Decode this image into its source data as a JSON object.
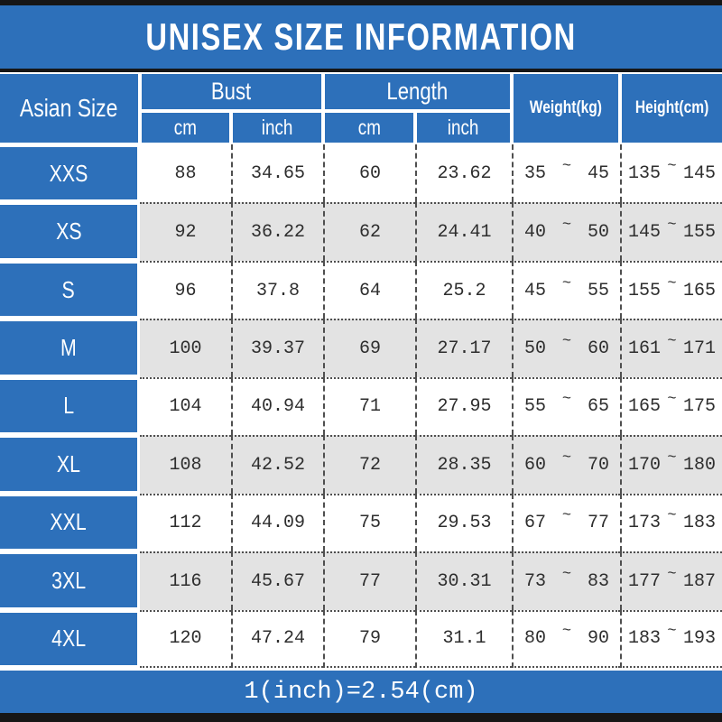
{
  "banner": {
    "title": "UNISEX SIZE INFORMATION"
  },
  "colors": {
    "blue": "#2d70ba",
    "alt_row": "#e3e3e3",
    "separator": "#4f4f4f",
    "bar": "#161616",
    "header_text": "#ffffff",
    "data_text": "#2e2e2e"
  },
  "chart_data": {
    "type": "table",
    "title": "UNISEX SIZE INFORMATION",
    "header": {
      "asian_size": "Asian Size",
      "bust": "Bust",
      "length": "Length",
      "weight": "Weight(kg)",
      "height": "Height(cm)",
      "cm": "cm",
      "inch": "inch",
      "range_separator": "~"
    },
    "columns": [
      "Asian Size",
      "Bust cm",
      "Bust inch",
      "Length cm",
      "Length inch",
      "Weight(kg)",
      "Height(cm)"
    ],
    "rows": [
      {
        "size": "XXS",
        "bust_cm": "88",
        "bust_inch": "34.65",
        "length_cm": "60",
        "length_inch": "23.62",
        "weight_min": "35",
        "weight_max": "45",
        "height_min": "135",
        "height_max": "145"
      },
      {
        "size": "XS",
        "bust_cm": "92",
        "bust_inch": "36.22",
        "length_cm": "62",
        "length_inch": "24.41",
        "weight_min": "40",
        "weight_max": "50",
        "height_min": "145",
        "height_max": "155"
      },
      {
        "size": "S",
        "bust_cm": "96",
        "bust_inch": "37.8",
        "length_cm": "64",
        "length_inch": "25.2",
        "weight_min": "45",
        "weight_max": "55",
        "height_min": "155",
        "height_max": "165"
      },
      {
        "size": "M",
        "bust_cm": "100",
        "bust_inch": "39.37",
        "length_cm": "69",
        "length_inch": "27.17",
        "weight_min": "50",
        "weight_max": "60",
        "height_min": "161",
        "height_max": "171"
      },
      {
        "size": "L",
        "bust_cm": "104",
        "bust_inch": "40.94",
        "length_cm": "71",
        "length_inch": "27.95",
        "weight_min": "55",
        "weight_max": "65",
        "height_min": "165",
        "height_max": "175"
      },
      {
        "size": "XL",
        "bust_cm": "108",
        "bust_inch": "42.52",
        "length_cm": "72",
        "length_inch": "28.35",
        "weight_min": "60",
        "weight_max": "70",
        "height_min": "170",
        "height_max": "180"
      },
      {
        "size": "XXL",
        "bust_cm": "112",
        "bust_inch": "44.09",
        "length_cm": "75",
        "length_inch": "29.53",
        "weight_min": "67",
        "weight_max": "77",
        "height_min": "173",
        "height_max": "183"
      },
      {
        "size": "3XL",
        "bust_cm": "116",
        "bust_inch": "45.67",
        "length_cm": "77",
        "length_inch": "30.31",
        "weight_min": "73",
        "weight_max": "83",
        "height_min": "177",
        "height_max": "187"
      },
      {
        "size": "4XL",
        "bust_cm": "120",
        "bust_inch": "47.24",
        "length_cm": "79",
        "length_inch": "31.1",
        "weight_min": "80",
        "weight_max": "90",
        "height_min": "183",
        "height_max": "193"
      }
    ],
    "footnote": "1(inch)=2.54(cm)"
  },
  "footer": {
    "note": "1(inch)=2.54(cm)"
  }
}
